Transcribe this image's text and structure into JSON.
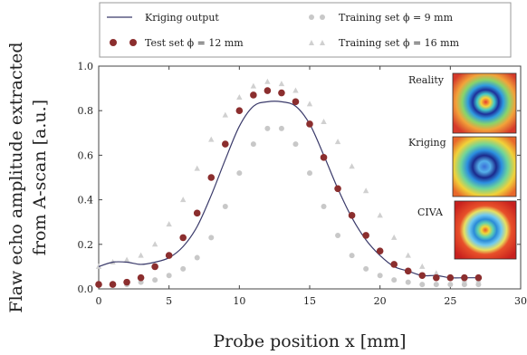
{
  "chart_data": {
    "type": "scatter",
    "xlabel": "Probe position x [mm]",
    "ylabel": [
      "Flaw echo amplitude extracted",
      "from A-scan [a.u.]"
    ],
    "xlim": [
      0,
      30
    ],
    "ylim": [
      0,
      1.0
    ],
    "x_ticks": [
      "0",
      "5",
      "10",
      "15",
      "20",
      "25",
      "30"
    ],
    "y_ticks": [
      "0.0",
      "0.2",
      "0.4",
      "0.6",
      "0.8",
      "1.0"
    ],
    "grid": false,
    "legend": {
      "placement": "top",
      "entries": [
        {
          "label": "Kriging output",
          "series": "kriging"
        },
        {
          "label": "Training set ϕ = 9 mm",
          "series": "train9"
        },
        {
          "label": "Test set ϕ = 12 mm",
          "series": "test12"
        },
        {
          "label": "Training set ϕ = 16 mm",
          "series": "train16"
        }
      ]
    },
    "series": [
      {
        "id": "kriging",
        "name": "Kriging output",
        "kind": "line",
        "color": "#3a3a6a",
        "x": [
          0,
          1,
          2,
          3,
          4,
          5,
          6,
          7,
          8,
          9,
          10,
          11,
          12,
          13,
          14,
          15,
          16,
          17,
          18,
          19,
          20,
          21,
          22,
          23,
          24,
          25,
          26,
          27
        ],
        "y": [
          0.1,
          0.12,
          0.12,
          0.11,
          0.12,
          0.14,
          0.19,
          0.28,
          0.42,
          0.58,
          0.73,
          0.82,
          0.84,
          0.84,
          0.82,
          0.74,
          0.6,
          0.45,
          0.32,
          0.22,
          0.15,
          0.1,
          0.08,
          0.06,
          0.06,
          0.05,
          0.05,
          0.05
        ]
      },
      {
        "id": "test12",
        "name": "Test set ϕ = 12 mm",
        "kind": "scatter",
        "color": "#8b2e2e",
        "x": [
          0,
          1,
          2,
          3,
          4,
          5,
          6,
          7,
          8,
          9,
          10,
          11,
          12,
          13,
          14,
          15,
          16,
          17,
          18,
          19,
          20,
          21,
          22,
          23,
          24,
          25,
          26,
          27
        ],
        "y": [
          0.02,
          0.02,
          0.03,
          0.05,
          0.1,
          0.15,
          0.23,
          0.34,
          0.5,
          0.65,
          0.8,
          0.87,
          0.89,
          0.88,
          0.84,
          0.74,
          0.59,
          0.45,
          0.33,
          0.24,
          0.17,
          0.11,
          0.08,
          0.06,
          0.05,
          0.05,
          0.05,
          0.05
        ]
      },
      {
        "id": "train9",
        "name": "Training set ϕ = 9 mm",
        "kind": "scatter",
        "color": "#c8c8c8",
        "x": [
          0,
          1,
          2,
          3,
          4,
          5,
          6,
          7,
          8,
          9,
          10,
          11,
          12,
          13,
          14,
          15,
          16,
          17,
          18,
          19,
          20,
          21,
          22,
          23,
          24,
          25,
          26,
          27
        ],
        "y": [
          0.02,
          0.02,
          0.02,
          0.03,
          0.04,
          0.06,
          0.09,
          0.14,
          0.23,
          0.37,
          0.52,
          0.65,
          0.72,
          0.72,
          0.65,
          0.52,
          0.37,
          0.24,
          0.15,
          0.09,
          0.06,
          0.04,
          0.03,
          0.02,
          0.02,
          0.02,
          0.02,
          0.02
        ]
      },
      {
        "id": "train16",
        "name": "Training set ϕ = 16 mm",
        "kind": "scatter",
        "color": "#d0d0d0",
        "x": [
          0,
          1,
          2,
          3,
          4,
          5,
          6,
          7,
          8,
          9,
          10,
          11,
          12,
          13,
          14,
          15,
          16,
          17,
          18,
          19,
          20,
          21,
          22,
          23,
          24,
          25,
          26,
          27
        ],
        "y": [
          0.1,
          0.12,
          0.13,
          0.15,
          0.2,
          0.29,
          0.4,
          0.54,
          0.67,
          0.78,
          0.86,
          0.91,
          0.93,
          0.92,
          0.89,
          0.83,
          0.75,
          0.66,
          0.55,
          0.44,
          0.33,
          0.23,
          0.15,
          0.1,
          0.07,
          0.05,
          0.04,
          0.04
        ]
      }
    ],
    "insets": [
      {
        "label": "Reality",
        "label_color": "#7a1f2a"
      },
      {
        "label": "Kriging",
        "label_color": "#2b3a8a"
      },
      {
        "label": "CIVA",
        "label_color": "#222222"
      }
    ]
  }
}
